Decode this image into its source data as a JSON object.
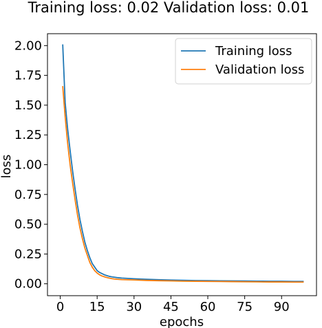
{
  "chart_data": {
    "type": "line",
    "title": "Training loss: 0.02 Validation loss: 0.01",
    "xlabel": "epochs",
    "ylabel": "loss",
    "xlim": [
      -5.2,
      104.2
    ],
    "ylim": [
      -0.1,
      2.1
    ],
    "xticks": [
      "0",
      "15",
      "30",
      "45",
      "60",
      "75",
      "90"
    ],
    "xtick_values": [
      0,
      15,
      30,
      45,
      60,
      75,
      90
    ],
    "yticks": [
      "0.00",
      "0.25",
      "0.50",
      "0.75",
      "1.00",
      "1.25",
      "1.50",
      "1.75",
      "2.00"
    ],
    "ytick_values": [
      0,
      0.25,
      0.5,
      0.75,
      1.0,
      1.25,
      1.5,
      1.75,
      2.0
    ],
    "grid": false,
    "legend_position": "top-right",
    "series": [
      {
        "name": "Training loss",
        "color": "#1f77b4",
        "x": [
          1,
          2,
          3,
          4,
          5,
          6,
          7,
          8,
          9,
          10,
          11,
          12,
          13,
          14,
          15,
          16,
          17,
          18,
          19,
          20,
          21,
          22,
          23,
          25,
          30,
          35,
          40,
          45,
          50,
          55,
          60,
          65,
          70,
          75,
          80,
          85,
          90,
          95,
          99
        ],
        "y": [
          2.01,
          1.52,
          1.3,
          1.12,
          0.95,
          0.8,
          0.66,
          0.54,
          0.44,
          0.35,
          0.28,
          0.22,
          0.17,
          0.14,
          0.11,
          0.095,
          0.085,
          0.075,
          0.068,
          0.062,
          0.058,
          0.055,
          0.052,
          0.048,
          0.042,
          0.038,
          0.034,
          0.031,
          0.029,
          0.027,
          0.026,
          0.025,
          0.024,
          0.023,
          0.022,
          0.021,
          0.021,
          0.02,
          0.02
        ]
      },
      {
        "name": "Validation loss",
        "color": "#ff7f0e",
        "x": [
          1,
          2,
          3,
          4,
          5,
          6,
          7,
          8,
          9,
          10,
          11,
          12,
          13,
          14,
          15,
          16,
          17,
          18,
          19,
          20,
          21,
          22,
          23,
          25,
          30,
          35,
          40,
          45,
          50,
          55,
          60,
          65,
          70,
          75,
          80,
          85,
          90,
          95,
          99
        ],
        "y": [
          1.66,
          1.4,
          1.18,
          1.0,
          0.85,
          0.71,
          0.58,
          0.47,
          0.38,
          0.3,
          0.24,
          0.18,
          0.14,
          0.11,
          0.09,
          0.075,
          0.065,
          0.058,
          0.052,
          0.047,
          0.043,
          0.04,
          0.038,
          0.035,
          0.032,
          0.028,
          0.026,
          0.024,
          0.022,
          0.021,
          0.02,
          0.019,
          0.018,
          0.017,
          0.016,
          0.015,
          0.015,
          0.014,
          0.014
        ]
      }
    ]
  }
}
